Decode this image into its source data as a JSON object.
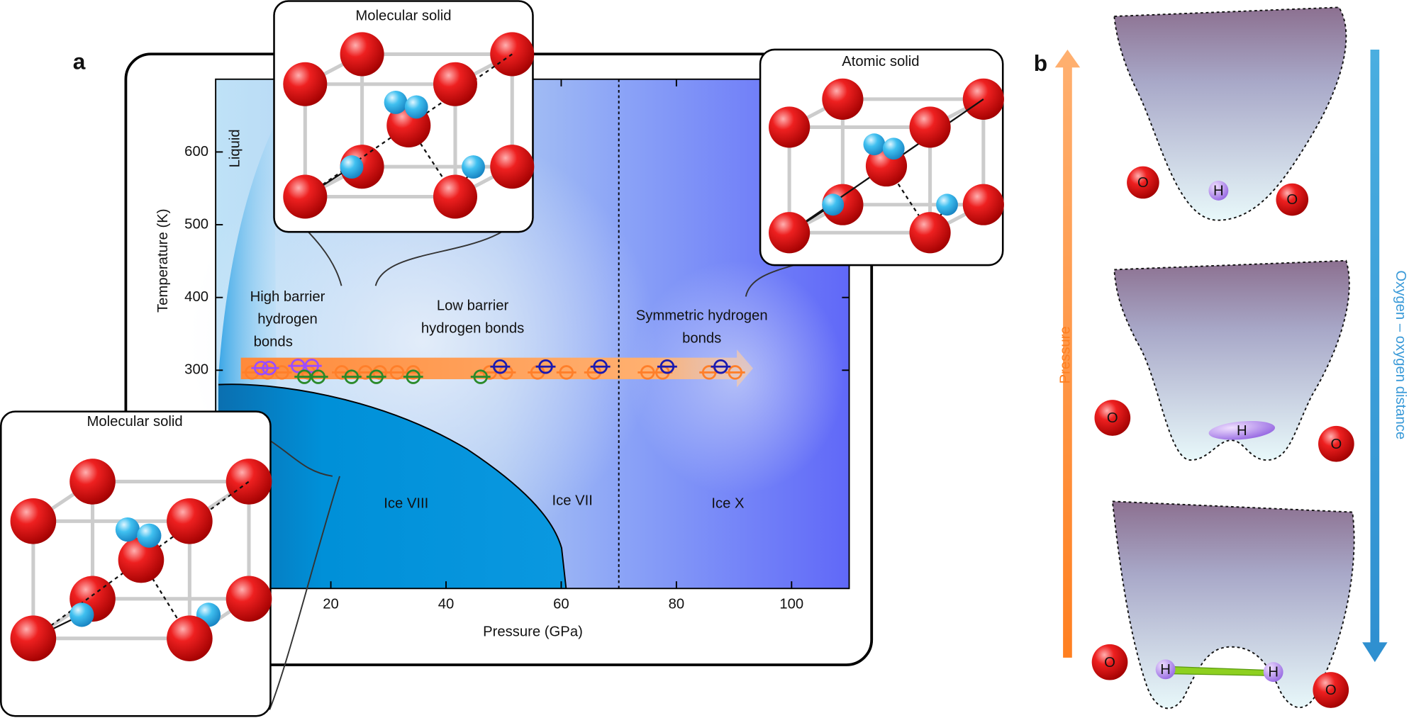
{
  "chart_data": {
    "type": "scatter",
    "panel_label": "a",
    "xlabel": "Pressure (GPa)",
    "ylabel": "Temperature (K)",
    "xlim": [
      0,
      110
    ],
    "ylim": [
      0,
      700
    ],
    "xticks": [
      20,
      40,
      60,
      80,
      100
    ],
    "yticks": [
      300,
      400,
      500,
      600
    ],
    "series": [
      {
        "color": "#ff7f2a",
        "x": [
          6.3,
          9.0,
          11.5,
          16.1,
          21.9,
          26.0,
          28.5,
          31.5,
          34.3,
          47.6,
          50.4,
          55.9,
          60.9,
          65.7,
          75.0,
          77.6,
          85.7,
          90.2
        ],
        "y": [
          297,
          297,
          297,
          297,
          297,
          297,
          297,
          297,
          297,
          297,
          297,
          297,
          297,
          297,
          297,
          297,
          297,
          297
        ]
      },
      {
        "color": "#9b4dff",
        "x": [
          7.9,
          9.3,
          14.3,
          16.7
        ],
        "y": [
          303,
          303,
          306,
          306
        ]
      },
      {
        "color": "#2a8a2a",
        "x": [
          15.4,
          17.8,
          23.6,
          27.9,
          34.3,
          46.0
        ],
        "y": [
          291,
          291,
          291,
          291,
          291,
          291
        ]
      },
      {
        "color": "#1a1ab0",
        "x": [
          49.4,
          57.3,
          66.8,
          78.4,
          87.7
        ],
        "y": [
          305,
          305,
          305,
          305,
          305
        ]
      }
    ],
    "phase_boundary_x": 70,
    "regions": [
      "Liquid",
      "Ice VIII",
      "Ice VII",
      "Ice X"
    ],
    "bond_labels": [
      [
        "High barrier",
        "hydrogen",
        "bonds"
      ],
      [
        "Low barrier",
        "hydrogen bonds"
      ],
      [
        "Symmetric hydrogen",
        "bonds"
      ]
    ],
    "insets": [
      "Molecular solid",
      "Atomic solid",
      "Molecular solid"
    ]
  },
  "panel_b": {
    "label": "b",
    "pressure_arrow": "Pressure",
    "distance_arrow": "Oxygen – oxygen distance",
    "wells": [
      [
        "O",
        "H",
        "O"
      ],
      [
        "O",
        "H",
        "O"
      ],
      [
        "O",
        "H",
        "H",
        "O"
      ]
    ]
  }
}
